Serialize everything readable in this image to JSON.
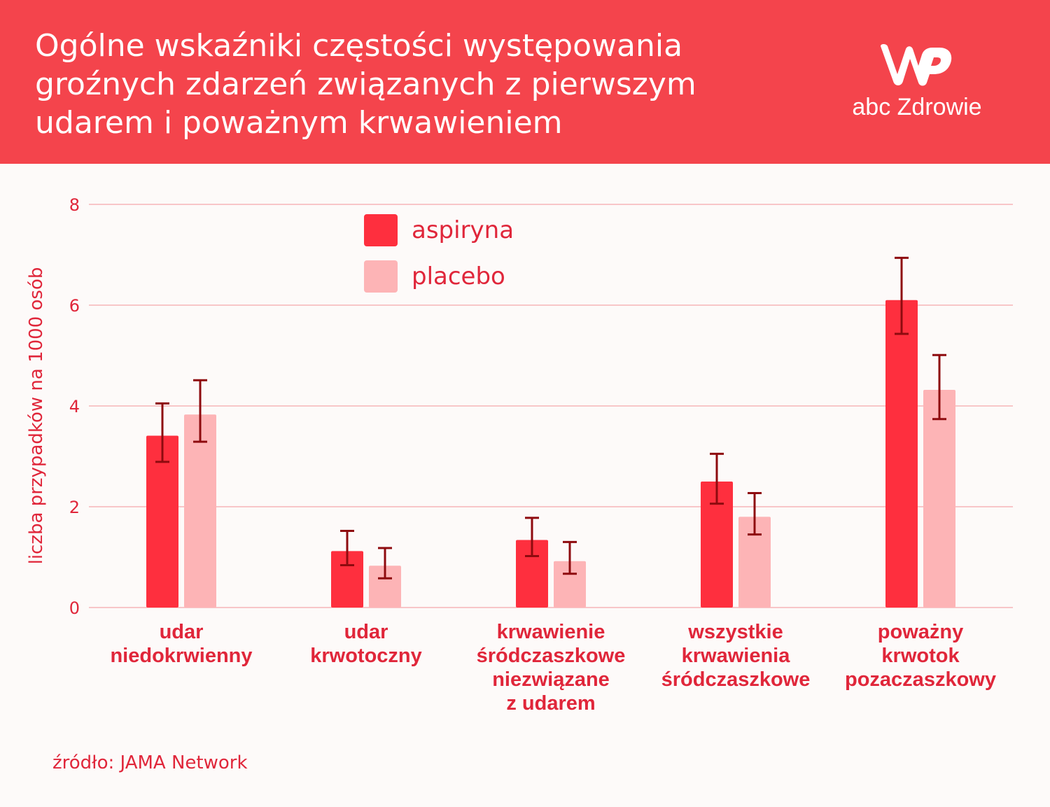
{
  "header": {
    "title_lines": [
      "Ogólne wskaźniki częstości występowania",
      "groźnych zdarzeń związanych z pierwszym",
      "udarem i poważnym krwawieniem"
    ],
    "logo_text": "abc Zdrowie",
    "logo_icon": "wp-logo-icon"
  },
  "source_text": "źródło: JAMA Network",
  "colors": {
    "header_bg": "#f4444c",
    "aspiryna": "#fe2f3e",
    "placebo": "#fdb4b6",
    "error_bar": "#8e0b0f",
    "text": "#e0263a",
    "grid": "#f6b5b8"
  },
  "chart_data": {
    "type": "bar",
    "ylabel": "liczba przypadków na 1000 osób",
    "ylim": [
      0,
      8
    ],
    "yticks": [
      0,
      2,
      4,
      6,
      8
    ],
    "grid": true,
    "legend_position": "top-left",
    "categories": [
      [
        "udar",
        "niedokrwienny"
      ],
      [
        "udar",
        "krwotoczny"
      ],
      [
        "krwawienie",
        "śródczaszkowe",
        "niezwiązane",
        "z udarem"
      ],
      [
        "wszystkie",
        "krwawienia",
        "śródczaszkowe"
      ],
      [
        "poważny",
        "krwotok",
        "pozaczaszkowy"
      ]
    ],
    "series": [
      {
        "name": "aspiryna",
        "values": [
          3.41,
          1.12,
          1.34,
          2.5,
          6.1
        ],
        "error_low": [
          2.89,
          0.84,
          1.02,
          2.06,
          5.43
        ],
        "error_high": [
          4.05,
          1.52,
          1.78,
          3.05,
          6.94
        ]
      },
      {
        "name": "placebo",
        "values": [
          3.83,
          0.83,
          0.92,
          1.8,
          4.32
        ],
        "error_low": [
          3.29,
          0.58,
          0.67,
          1.45,
          3.74
        ],
        "error_high": [
          4.51,
          1.18,
          1.3,
          2.27,
          5.01
        ]
      }
    ]
  }
}
